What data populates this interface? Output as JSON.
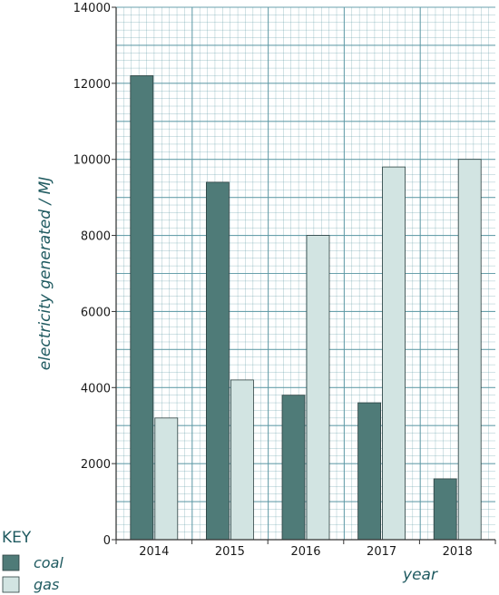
{
  "chart_data": {
    "type": "bar",
    "ylabel": "electricity generated / MJ",
    "xlabel": "year",
    "categories": [
      "2014",
      "2015",
      "2016",
      "2017",
      "2018"
    ],
    "series": [
      {
        "name": "coal",
        "values": [
          12200,
          9400,
          3800,
          3600,
          1600
        ],
        "color": "#4f7b78"
      },
      {
        "name": "gas",
        "values": [
          3200,
          4200,
          8000,
          9800,
          10000
        ],
        "color": "#d2e4e2"
      }
    ],
    "ylim": [
      0,
      14000
    ],
    "yticks": [
      0,
      2000,
      4000,
      6000,
      8000,
      10000,
      12000,
      14000
    ],
    "grid": true,
    "grid_color": "#5a97a3",
    "legend": {
      "title": "KEY",
      "position": "bottom-left"
    }
  }
}
